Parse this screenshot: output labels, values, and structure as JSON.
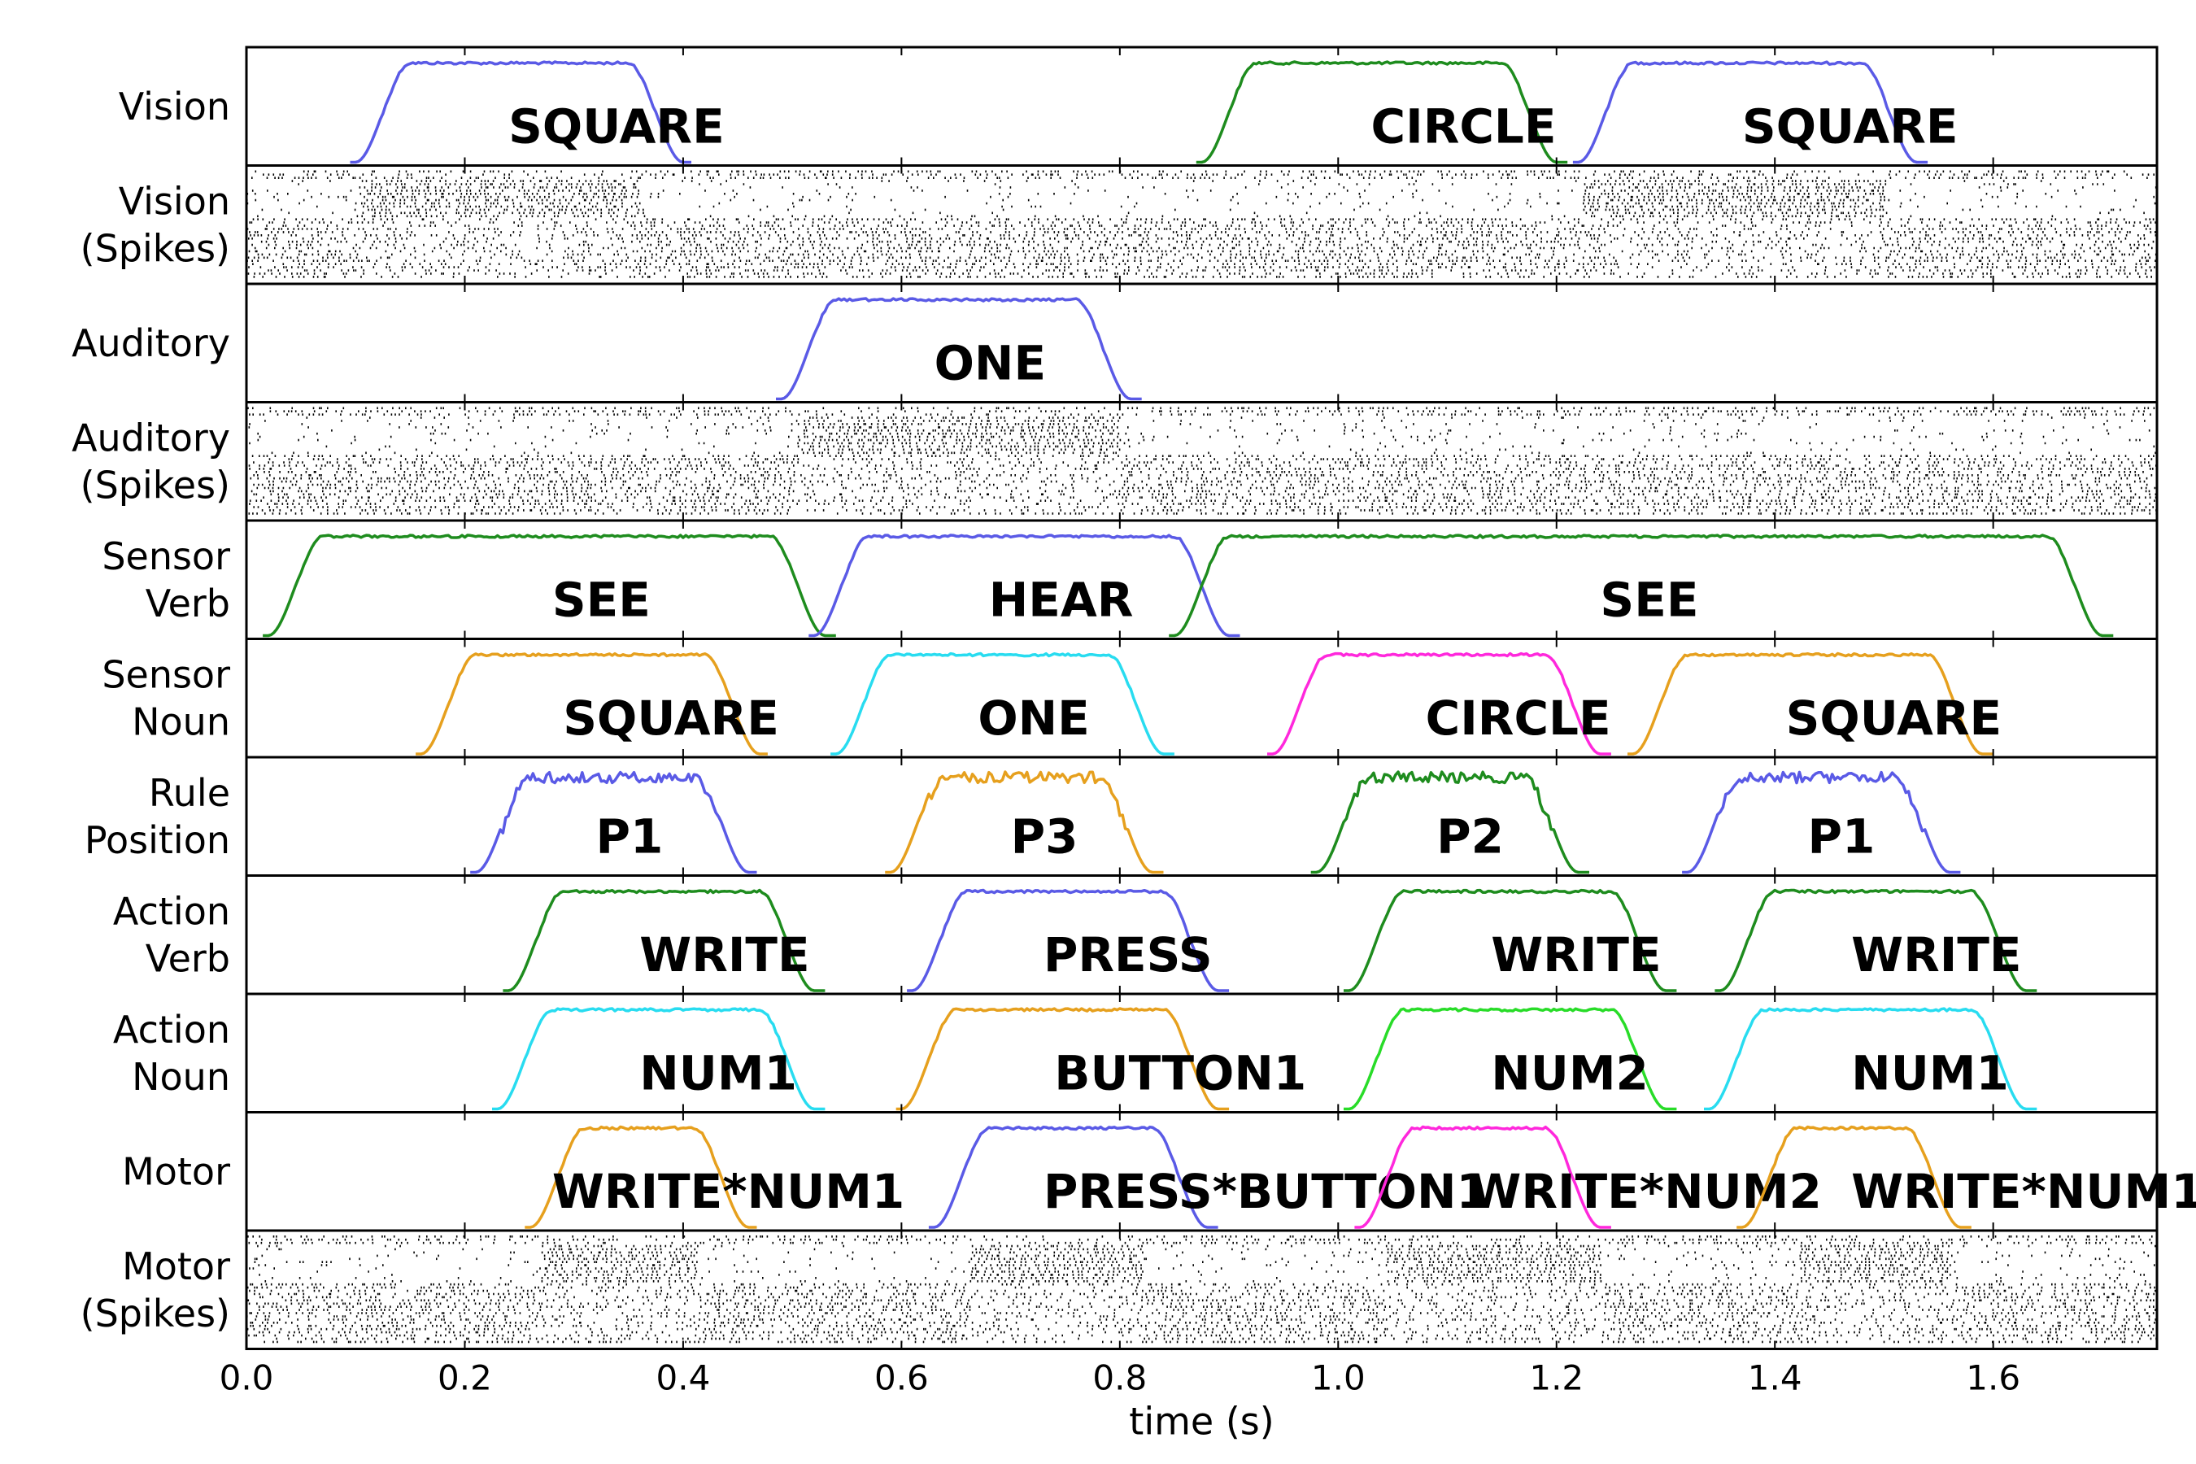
{
  "chart_data": {
    "type": "line",
    "xlabel": "time (s)",
    "xlim": [
      0.0,
      1.75
    ],
    "xticks": [
      0.0,
      0.2,
      0.4,
      0.6,
      0.8,
      1.0,
      1.2,
      1.4,
      1.6
    ],
    "xtick_labels": [
      "0.0",
      "0.2",
      "0.4",
      "0.6",
      "0.8",
      "1.0",
      "1.2",
      "1.4",
      "1.6"
    ],
    "colors": {
      "blue": "#5a5ae6",
      "green": "#1e8c1e",
      "orange": "#e6a01e",
      "cyan": "#28dcf0",
      "magenta": "#ff28dc",
      "lime": "#28dc28"
    },
    "panels": [
      {
        "label": [
          "Vision"
        ],
        "kind": "trace",
        "events": [
          {
            "label": "SQUARE",
            "color": "blue",
            "start": 0.1,
            "end": 0.4,
            "label_x": 0.24
          },
          {
            "label": "CIRCLE",
            "color": "green",
            "start": 0.875,
            "end": 1.2,
            "label_x": 1.03
          },
          {
            "label": "SQUARE",
            "color": "blue",
            "start": 1.22,
            "end": 1.53,
            "label_x": 1.37
          }
        ]
      },
      {
        "label": [
          "Vision",
          "(Spikes)"
        ],
        "kind": "raster",
        "bursts": [
          [
            0.1,
            0.36
          ],
          [
            1.22,
            1.5
          ]
        ]
      },
      {
        "label": [
          "Auditory"
        ],
        "kind": "trace",
        "events": [
          {
            "label": "ONE",
            "color": "blue",
            "start": 0.49,
            "end": 0.81,
            "label_x": 0.63
          }
        ]
      },
      {
        "label": [
          "Auditory",
          "(Spikes)"
        ],
        "kind": "raster",
        "bursts": [
          [
            0.5,
            0.8
          ]
        ]
      },
      {
        "label": [
          "Sensor",
          "Verb"
        ],
        "kind": "trace",
        "events": [
          {
            "label": "SEE",
            "color": "green",
            "start": 0.02,
            "end": 0.53,
            "label_x": 0.28
          },
          {
            "label": "HEAR",
            "color": "blue",
            "start": 0.52,
            "end": 0.9,
            "label_x": 0.68
          },
          {
            "label": "SEE",
            "color": "green",
            "start": 0.85,
            "end": 1.7,
            "label_x": 1.24
          }
        ]
      },
      {
        "label": [
          "Sensor",
          "Noun"
        ],
        "kind": "trace",
        "events": [
          {
            "label": "SQUARE",
            "color": "orange",
            "start": 0.16,
            "end": 0.47,
            "label_x": 0.29
          },
          {
            "label": "ONE",
            "color": "cyan",
            "start": 0.54,
            "end": 0.84,
            "label_x": 0.67
          },
          {
            "label": "CIRCLE",
            "color": "magenta",
            "start": 0.94,
            "end": 1.24,
            "label_x": 1.08
          },
          {
            "label": "SQUARE",
            "color": "orange",
            "start": 1.27,
            "end": 1.59,
            "label_x": 1.41
          }
        ]
      },
      {
        "label": [
          "Rule",
          "Position"
        ],
        "kind": "trace",
        "events": [
          {
            "label": "P1",
            "color": "blue",
            "start": 0.21,
            "end": 0.46,
            "label_x": 0.32
          },
          {
            "label": "P3",
            "color": "orange",
            "start": 0.59,
            "end": 0.83,
            "label_x": 0.7
          },
          {
            "label": "P2",
            "color": "green",
            "start": 0.98,
            "end": 1.22,
            "label_x": 1.09
          },
          {
            "label": "P1",
            "color": "blue",
            "start": 1.32,
            "end": 1.56,
            "label_x": 1.43
          }
        ]
      },
      {
        "label": [
          "Action",
          "Verb"
        ],
        "kind": "trace",
        "events": [
          {
            "label": "WRITE",
            "color": "green",
            "start": 0.24,
            "end": 0.52,
            "label_x": 0.36
          },
          {
            "label": "PRESS",
            "color": "blue",
            "start": 0.61,
            "end": 0.89,
            "label_x": 0.73
          },
          {
            "label": "WRITE",
            "color": "green",
            "start": 1.01,
            "end": 1.3,
            "label_x": 1.14
          },
          {
            "label": "WRITE",
            "color": "green",
            "start": 1.35,
            "end": 1.63,
            "label_x": 1.47
          }
        ]
      },
      {
        "label": [
          "Action",
          "Noun"
        ],
        "kind": "trace",
        "events": [
          {
            "label": "NUM1",
            "color": "cyan",
            "start": 0.23,
            "end": 0.52,
            "label_x": 0.36
          },
          {
            "label": "BUTTON1",
            "color": "orange",
            "start": 0.6,
            "end": 0.89,
            "label_x": 0.74
          },
          {
            "label": "NUM2",
            "color": "lime",
            "start": 1.01,
            "end": 1.3,
            "label_x": 1.14
          },
          {
            "label": "NUM1",
            "color": "cyan",
            "start": 1.34,
            "end": 1.63,
            "label_x": 1.47
          }
        ]
      },
      {
        "label": [
          "Motor"
        ],
        "kind": "trace",
        "events": [
          {
            "label": "WRITE*NUM1",
            "color": "orange",
            "start": 0.26,
            "end": 0.46,
            "label_x": 0.28
          },
          {
            "label": "PRESS*BUTTON1",
            "color": "blue",
            "start": 0.63,
            "end": 0.88,
            "label_x": 0.73
          },
          {
            "label": "WRITE*NUM2",
            "color": "magenta",
            "start": 1.02,
            "end": 1.24,
            "label_x": 1.12
          },
          {
            "label": "WRITE*NUM1",
            "color": "orange",
            "start": 1.37,
            "end": 1.57,
            "label_x": 1.47
          }
        ]
      },
      {
        "label": [
          "Motor",
          "(Spikes)"
        ],
        "kind": "raster",
        "bursts": [
          [
            0.27,
            0.41
          ],
          [
            0.66,
            0.82
          ],
          [
            1.04,
            1.24
          ],
          [
            1.42,
            1.56
          ]
        ]
      }
    ]
  }
}
